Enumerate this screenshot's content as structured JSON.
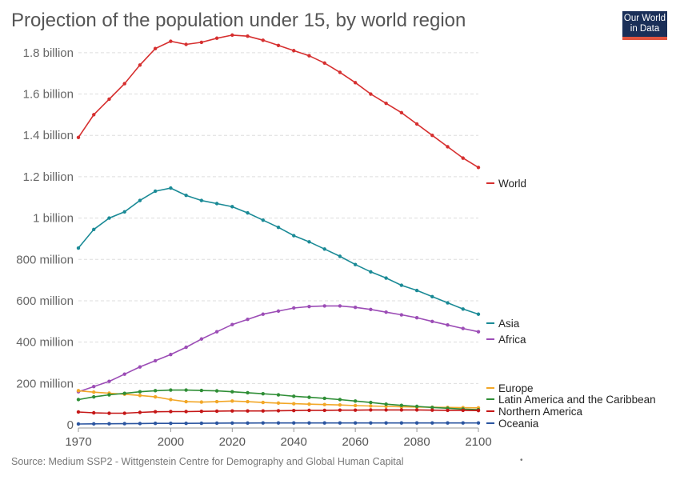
{
  "title": "Projection of the population under 15, by world region",
  "logo": {
    "line1": "Our World",
    "line2": "in Data",
    "bg_color": "#1a2f58",
    "stripe_color": "#e0543f"
  },
  "source": "Source: Medium SSP2 - Wittgenstein Centre for Demography and Global Human Capital",
  "footer_mark": "•",
  "chart_data": {
    "type": "line",
    "x": [
      1970,
      1975,
      1980,
      1985,
      1990,
      1995,
      2000,
      2005,
      2010,
      2015,
      2020,
      2025,
      2030,
      2035,
      2040,
      2045,
      2050,
      2055,
      2060,
      2065,
      2070,
      2075,
      2080,
      2085,
      2090,
      2095,
      2100
    ],
    "xlim": [
      1970,
      2100
    ],
    "ylim": [
      0,
      1900000000
    ],
    "y_ticks": [
      0,
      200000000,
      400000000,
      600000000,
      800000000,
      1000000000,
      1200000000,
      1400000000,
      1600000000,
      1800000000
    ],
    "y_tick_labels": [
      "0",
      "200 million",
      "400 million",
      "600 million",
      "800 million",
      "1 billion",
      "1.2 billion",
      "1.4 billion",
      "1.6 billion",
      "1.8 billion"
    ],
    "x_ticks": [
      1970,
      2000,
      2020,
      2040,
      2060,
      2080,
      2100
    ],
    "x_tick_labels": [
      "1970",
      "2000",
      "2020",
      "2040",
      "2060",
      "2080",
      "2100"
    ],
    "grid": "horizontal dashed",
    "legend": "right, at line ends",
    "series": [
      {
        "name": "World",
        "color": "#d62f2f",
        "values": [
          1390000000,
          1500000000,
          1575000000,
          1650000000,
          1740000000,
          1820000000,
          1855000000,
          1840000000,
          1850000000,
          1870000000,
          1885000000,
          1880000000,
          1860000000,
          1835000000,
          1810000000,
          1785000000,
          1750000000,
          1705000000,
          1655000000,
          1600000000,
          1555000000,
          1510000000,
          1455000000,
          1400000000,
          1345000000,
          1290000000,
          1245000000
        ]
      },
      {
        "name": "Asia",
        "color": "#1a8a96",
        "values": [
          855000000,
          945000000,
          1000000000,
          1030000000,
          1085000000,
          1130000000,
          1145000000,
          1110000000,
          1085000000,
          1070000000,
          1055000000,
          1025000000,
          990000000,
          955000000,
          915000000,
          885000000,
          850000000,
          815000000,
          775000000,
          740000000,
          710000000,
          675000000,
          650000000,
          620000000,
          590000000,
          560000000,
          535000000
        ]
      },
      {
        "name": "Africa",
        "color": "#9c4db6",
        "values": [
          160000000,
          185000000,
          210000000,
          245000000,
          280000000,
          310000000,
          340000000,
          375000000,
          415000000,
          450000000,
          485000000,
          510000000,
          535000000,
          550000000,
          565000000,
          572000000,
          575000000,
          575000000,
          568000000,
          558000000,
          545000000,
          532000000,
          518000000,
          500000000,
          483000000,
          466000000,
          450000000
        ]
      },
      {
        "name": "Europe",
        "color": "#f2a727",
        "values": [
          165000000,
          158000000,
          153000000,
          148000000,
          142000000,
          135000000,
          122000000,
          112000000,
          110000000,
          112000000,
          115000000,
          112000000,
          108000000,
          105000000,
          102000000,
          100000000,
          98000000,
          96000000,
          93000000,
          91000000,
          89000000,
          87000000,
          86000000,
          85000000,
          84000000,
          83000000,
          82000000
        ]
      },
      {
        "name": "Latin America and the Caribbean",
        "color": "#2f8e36",
        "values": [
          122000000,
          135000000,
          145000000,
          152000000,
          160000000,
          165000000,
          168000000,
          168000000,
          166000000,
          164000000,
          160000000,
          155000000,
          150000000,
          145000000,
          138000000,
          133000000,
          128000000,
          122000000,
          115000000,
          108000000,
          100000000,
          94000000,
          89000000,
          84000000,
          80000000,
          76000000,
          73000000
        ]
      },
      {
        "name": "Northern America",
        "color": "#c51717",
        "values": [
          62000000,
          58000000,
          56000000,
          56000000,
          60000000,
          63000000,
          64000000,
          64000000,
          65000000,
          66000000,
          67000000,
          67000000,
          67000000,
          68000000,
          69000000,
          70000000,
          70000000,
          71000000,
          71000000,
          72000000,
          72000000,
          72000000,
          72000000,
          71000000,
          70000000,
          70000000,
          69000000
        ]
      },
      {
        "name": "Oceania",
        "color": "#2b55a0",
        "values": [
          4000000,
          4500000,
          5000000,
          5500000,
          6000000,
          7000000,
          7000000,
          7000000,
          7500000,
          8000000,
          8500000,
          8500000,
          9000000,
          9000000,
          9000000,
          9000000,
          9000000,
          9000000,
          9000000,
          9000000,
          9000000,
          9000000,
          9000000,
          9000000,
          9000000,
          9000000,
          9000000
        ]
      }
    ]
  }
}
